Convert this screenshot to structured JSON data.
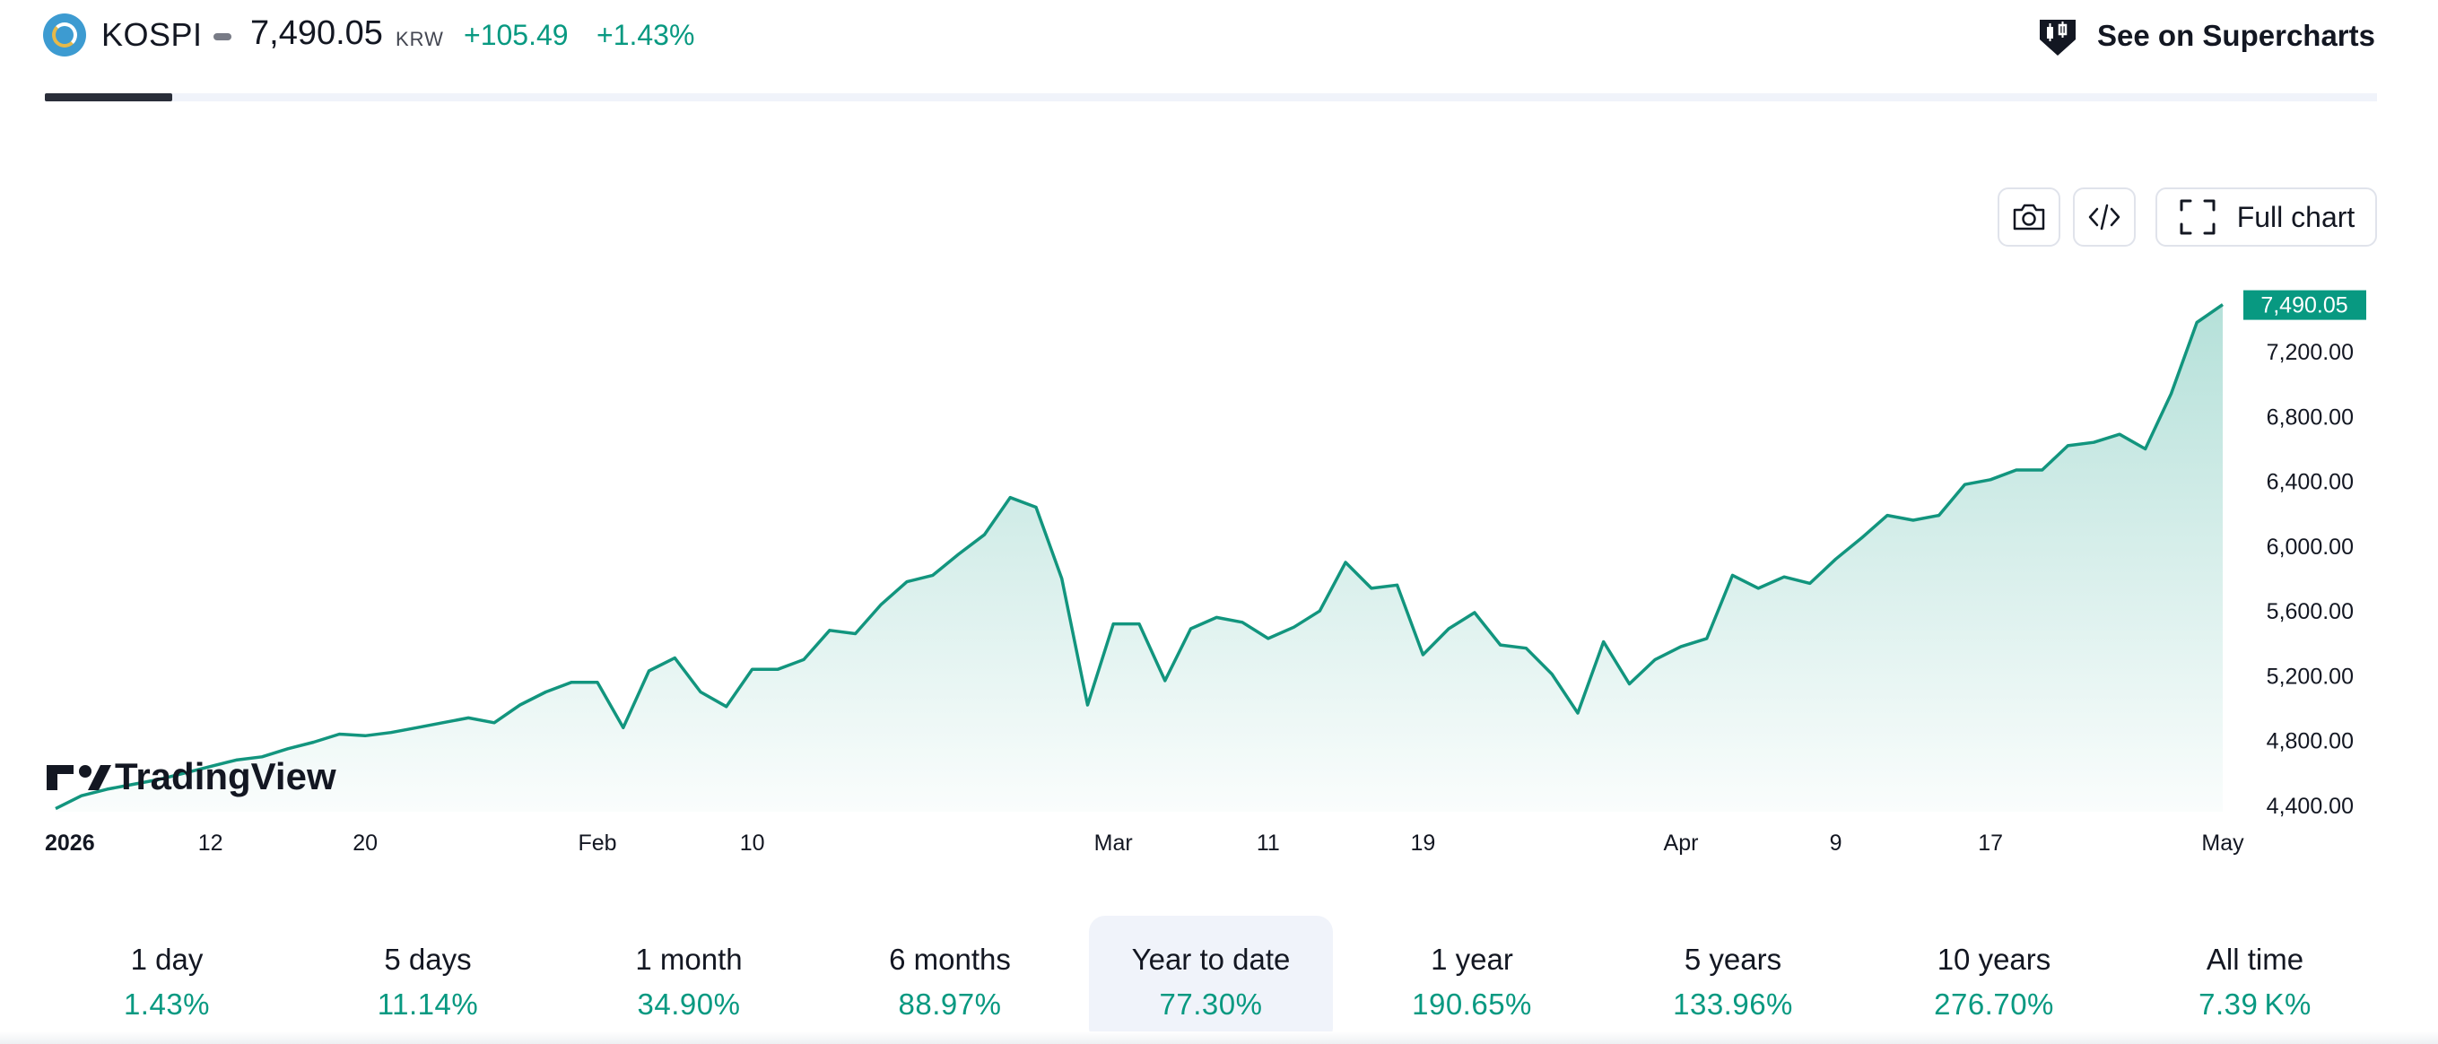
{
  "header": {
    "symbol": "KOSPI",
    "price": "7,490.05",
    "currency": "KRW",
    "change_abs": "+105.49",
    "change_pct": "+1.43%",
    "supercharts_label": "See on Supercharts"
  },
  "toolbar": {
    "full_chart_label": "Full chart"
  },
  "branding": {
    "watermark": "TradingView"
  },
  "colors": {
    "accent": "#089981",
    "line": "#12957e",
    "text": "#131722"
  },
  "chart_data": {
    "type": "area",
    "title": "",
    "xlabel": "",
    "ylabel": "",
    "ylim": [
      4400,
      7560
    ],
    "y_ticks": [
      "7,200.00",
      "6,800.00",
      "6,400.00",
      "6,000.00",
      "5,600.00",
      "5,200.00",
      "4,800.00",
      "4,400.00"
    ],
    "x_ticks": [
      "2026",
      "12",
      "20",
      "Feb",
      "10",
      "Mar",
      "11",
      "19",
      "Apr",
      "9",
      "17",
      "May"
    ],
    "last_value_label": "7,490.05",
    "grid": false,
    "series": [
      {
        "points": [
          [
            "2026-01-02",
            4380
          ],
          [
            "2026-01-05",
            4460
          ],
          [
            "2026-01-06",
            4500
          ],
          [
            "2026-01-07",
            4530
          ],
          [
            "2026-01-08",
            4560
          ],
          [
            "2026-01-09",
            4600
          ],
          [
            "2026-01-12",
            4640
          ],
          [
            "2026-01-13",
            4680
          ],
          [
            "2026-01-14",
            4700
          ],
          [
            "2026-01-15",
            4750
          ],
          [
            "2026-01-16",
            4790
          ],
          [
            "2026-01-19",
            4840
          ],
          [
            "2026-01-20",
            4830
          ],
          [
            "2026-01-21",
            4850
          ],
          [
            "2026-01-22",
            4880
          ],
          [
            "2026-01-23",
            4910
          ],
          [
            "2026-01-26",
            4940
          ],
          [
            "2026-01-27",
            4910
          ],
          [
            "2026-01-28",
            5020
          ],
          [
            "2026-01-29",
            5100
          ],
          [
            "2026-01-30",
            5160
          ],
          [
            "2026-02-02",
            5160
          ],
          [
            "2026-02-03",
            4880
          ],
          [
            "2026-02-04",
            5230
          ],
          [
            "2026-02-05",
            5310
          ],
          [
            "2026-02-06",
            5100
          ],
          [
            "2026-02-09",
            5010
          ],
          [
            "2026-02-10",
            5240
          ],
          [
            "2026-02-11",
            5240
          ],
          [
            "2026-02-12",
            5300
          ],
          [
            "2026-02-13",
            5480
          ],
          [
            "2026-02-16",
            5460
          ],
          [
            "2026-02-17",
            5640
          ],
          [
            "2026-02-18",
            5780
          ],
          [
            "2026-02-19",
            5820
          ],
          [
            "2026-02-20",
            5950
          ],
          [
            "2026-02-23",
            6070
          ],
          [
            "2026-02-24",
            6300
          ],
          [
            "2026-02-25",
            6240
          ],
          [
            "2026-02-26",
            5800
          ],
          [
            "2026-02-27",
            5020
          ],
          [
            "2026-03-02",
            5520
          ],
          [
            "2026-03-03",
            5520
          ],
          [
            "2026-03-04",
            5170
          ],
          [
            "2026-03-05",
            5490
          ],
          [
            "2026-03-06",
            5560
          ],
          [
            "2026-03-09",
            5530
          ],
          [
            "2026-03-10",
            5430
          ],
          [
            "2026-03-11",
            5500
          ],
          [
            "2026-03-12",
            5600
          ],
          [
            "2026-03-13",
            5900
          ],
          [
            "2026-03-16",
            5740
          ],
          [
            "2026-03-17",
            5760
          ],
          [
            "2026-03-18",
            5330
          ],
          [
            "2026-03-19",
            5490
          ],
          [
            "2026-03-20",
            5590
          ],
          [
            "2026-03-23",
            5390
          ],
          [
            "2026-03-24",
            5370
          ],
          [
            "2026-03-25",
            5210
          ],
          [
            "2026-03-26",
            4970
          ],
          [
            "2026-03-27",
            5410
          ],
          [
            "2026-03-30",
            5150
          ],
          [
            "2026-03-31",
            5300
          ],
          [
            "2026-04-01",
            5380
          ],
          [
            "2026-04-02",
            5430
          ],
          [
            "2026-04-03",
            5820
          ],
          [
            "2026-04-06",
            5740
          ],
          [
            "2026-04-07",
            5810
          ],
          [
            "2026-04-08",
            5770
          ],
          [
            "2026-04-09",
            5920
          ],
          [
            "2026-04-10",
            6050
          ],
          [
            "2026-04-13",
            6190
          ],
          [
            "2026-04-14",
            6160
          ],
          [
            "2026-04-15",
            6190
          ],
          [
            "2026-04-16",
            6380
          ],
          [
            "2026-04-17",
            6410
          ],
          [
            "2026-04-20",
            6470
          ],
          [
            "2026-04-21",
            6470
          ],
          [
            "2026-04-22",
            6620
          ],
          [
            "2026-04-23",
            6640
          ],
          [
            "2026-04-24",
            6690
          ],
          [
            "2026-04-27",
            6600
          ],
          [
            "2026-04-28",
            6940
          ],
          [
            "2026-04-29",
            7380
          ],
          [
            "2026-04-30",
            7490.05
          ]
        ]
      }
    ]
  },
  "periods": [
    {
      "label": "1 day",
      "value": "1.43%"
    },
    {
      "label": "5 days",
      "value": "11.14%"
    },
    {
      "label": "1 month",
      "value": "34.90%"
    },
    {
      "label": "6 months",
      "value": "88.97%"
    },
    {
      "label": "Year to date",
      "value": "77.30%",
      "active": true
    },
    {
      "label": "1 year",
      "value": "190.65%"
    },
    {
      "label": "5 years",
      "value": "133.96%"
    },
    {
      "label": "10 years",
      "value": "276.70%"
    },
    {
      "label": "All time",
      "value": "7.39 K%"
    }
  ]
}
